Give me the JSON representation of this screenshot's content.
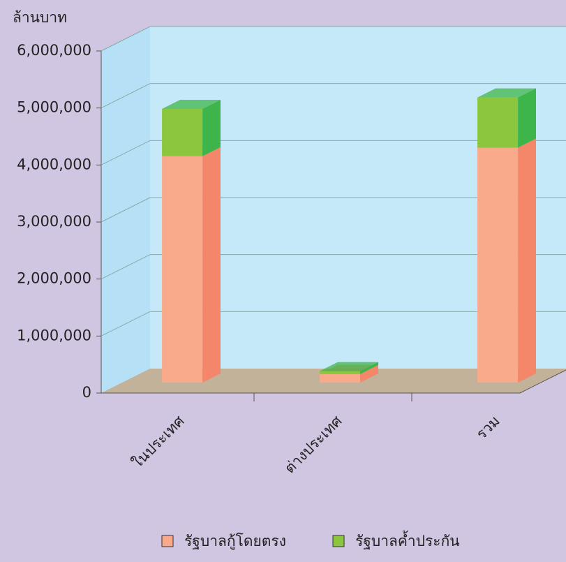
{
  "chart_data": {
    "type": "bar3d_stacked",
    "y_axis_label": "ล้านบาท",
    "categories": [
      "ในประเทศ",
      "ต่างประเทศ",
      "รวม"
    ],
    "series": [
      {
        "name": "รัฐบาลกู้โดยตรง",
        "color": "#f9aa8a",
        "side_color": "#f4876a",
        "values": [
          3970000,
          150000,
          4120000
        ]
      },
      {
        "name": "รัฐบาลค้ำประกัน",
        "color": "#8cc63f",
        "side_color": "#3db54a",
        "values": [
          830000,
          50000,
          880000
        ]
      }
    ],
    "ylim": [
      0,
      6000000
    ],
    "yticks": [
      0,
      {
        "value": 1000000,
        "label": "1,000,000"
      },
      {
        "value": 2000000,
        "label": "2,000,000"
      },
      {
        "value": 3000000,
        "label": "3,000,000"
      },
      {
        "value": 4000000,
        "label": "4,000,000"
      },
      {
        "value": 5000000,
        "label": "5,000,000"
      },
      {
        "value": 6000000,
        "label": "6,000,000"
      }
    ],
    "grid": true
  }
}
